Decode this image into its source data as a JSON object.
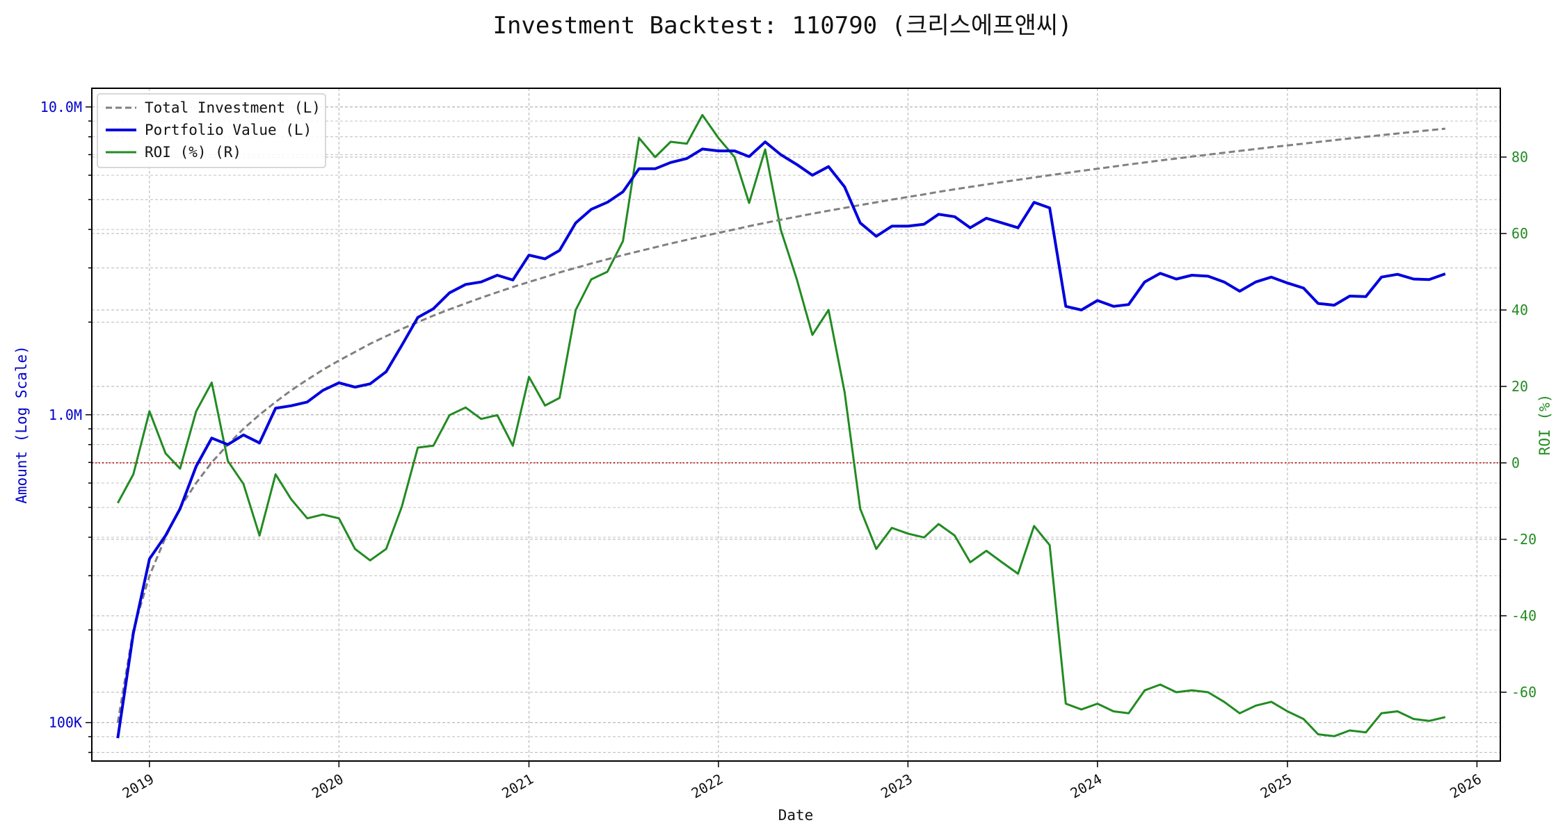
{
  "chart_data": {
    "type": "line",
    "title": "Investment Backtest: 110790 (크리스에프앤씨)",
    "xlabel": "Date",
    "ylabel_left": "Amount (Log Scale)",
    "ylabel_right": "ROI (%)",
    "left_axis": {
      "scale": "log",
      "ylim": [
        75000,
        11500000
      ],
      "ticks": [
        100000,
        1000000,
        10000000
      ],
      "tick_labels": [
        "100K",
        "1.0M",
        "10.0M"
      ],
      "color": "#0000cc"
    },
    "right_axis": {
      "scale": "linear",
      "ylim": [
        -78,
        98
      ],
      "ticks": [
        -60,
        -40,
        -20,
        0,
        20,
        40,
        60,
        80
      ],
      "tick_labels": [
        "-60",
        "-40",
        "-20",
        "0",
        "20",
        "40",
        "60",
        "80"
      ],
      "color": "#228b22"
    },
    "x_axis": {
      "start": "2018-09-12",
      "end": "2026-02-15",
      "tick_labels": [
        "2019",
        "2020",
        "2021",
        "2022",
        "2023",
        "2024",
        "2025",
        "2026"
      ]
    },
    "grid": true,
    "legend_position": "top-left",
    "zero_line": {
      "value": 0,
      "axis": "right",
      "color": "#cc0000"
    },
    "dates": [
      "2018-11-01",
      "2018-12-01",
      "2019-01-01",
      "2019-02-01",
      "2019-03-01",
      "2019-04-01",
      "2019-05-01",
      "2019-06-01",
      "2019-07-01",
      "2019-08-01",
      "2019-09-01",
      "2019-10-01",
      "2019-11-01",
      "2019-12-01",
      "2020-01-01",
      "2020-02-01",
      "2020-03-01",
      "2020-04-01",
      "2020-05-01",
      "2020-06-01",
      "2020-07-01",
      "2020-08-01",
      "2020-09-01",
      "2020-10-01",
      "2020-11-01",
      "2020-12-01",
      "2021-01-01",
      "2021-02-01",
      "2021-03-01",
      "2021-04-01",
      "2021-05-01",
      "2021-06-01",
      "2021-07-01",
      "2021-08-01",
      "2021-09-01",
      "2021-10-01",
      "2021-11-01",
      "2021-12-01",
      "2022-01-01",
      "2022-02-01",
      "2022-03-01",
      "2022-04-01",
      "2022-05-01",
      "2022-06-01",
      "2022-07-01",
      "2022-08-01",
      "2022-09-01",
      "2022-10-01",
      "2022-11-01",
      "2022-12-01",
      "2023-01-01",
      "2023-02-01",
      "2023-03-01",
      "2023-04-01",
      "2023-05-01",
      "2023-06-01",
      "2023-07-01",
      "2023-08-01",
      "2023-09-01",
      "2023-10-01",
      "2023-11-01",
      "2023-12-01",
      "2024-01-01",
      "2024-02-01",
      "2024-03-01",
      "2024-04-01",
      "2024-05-01",
      "2024-06-01",
      "2024-07-01",
      "2024-08-01",
      "2024-09-01",
      "2024-10-01",
      "2024-11-01",
      "2024-12-01",
      "2025-01-01",
      "2025-02-01",
      "2025-03-01",
      "2025-04-01",
      "2025-05-01",
      "2025-06-01",
      "2025-07-01",
      "2025-08-01",
      "2025-09-01",
      "2025-10-01",
      "2025-11-01"
    ],
    "series": [
      {
        "name": "Total Investment (L)",
        "axis": "left",
        "color": "#808080",
        "dash": true,
        "values": [
          100000,
          200000,
          300000,
          400000,
          500000,
          600000,
          700000,
          800000,
          900000,
          1000000,
          1100000,
          1200000,
          1300000,
          1400000,
          1500000,
          1600000,
          1700000,
          1800000,
          1900000,
          2000000,
          2100000,
          2200000,
          2300000,
          2400000,
          2500000,
          2600000,
          2700000,
          2800000,
          2900000,
          3000000,
          3100000,
          3200000,
          3300000,
          3400000,
          3500000,
          3600000,
          3700000,
          3800000,
          3900000,
          4000000,
          4100000,
          4200000,
          4300000,
          4400000,
          4500000,
          4600000,
          4700000,
          4800000,
          4900000,
          5000000,
          5100000,
          5200000,
          5300000,
          5400000,
          5500000,
          5600000,
          5700000,
          5800000,
          5900000,
          6000000,
          6100000,
          6200000,
          6300000,
          6400000,
          6500000,
          6600000,
          6700000,
          6800000,
          6900000,
          7000000,
          7100000,
          7200000,
          7300000,
          7400000,
          7500000,
          7600000,
          7700000,
          7800000,
          7900000,
          8000000,
          8100000,
          8200000,
          8300000,
          8400000,
          8500000
        ]
      },
      {
        "name": "Portfolio Value (L)",
        "axis": "left",
        "color": "#0000dd",
        "dash": false,
        "values": [
          89000,
          195000,
          340000,
          405000,
          495000,
          680000,
          840000,
          800000,
          860000,
          810000,
          1050000,
          1070000,
          1100000,
          1200000,
          1270000,
          1230000,
          1260000,
          1380000,
          1680000,
          2070000,
          2210000,
          2490000,
          2650000,
          2700000,
          2840000,
          2740000,
          3300000,
          3210000,
          3420000,
          4200000,
          4650000,
          4900000,
          5300000,
          6300000,
          6300000,
          6600000,
          6800000,
          7300000,
          7200000,
          7200000,
          6900000,
          7700000,
          7000000,
          6500000,
          6000000,
          6400000,
          5500000,
          4200000,
          3800000,
          4100000,
          4100000,
          4160000,
          4480000,
          4400000,
          4050000,
          4350000,
          4200000,
          4050000,
          4900000,
          4700000,
          2250000,
          2190000,
          2350000,
          2250000,
          2280000,
          2700000,
          2880000,
          2760000,
          2840000,
          2820000,
          2700000,
          2520000,
          2700000,
          2800000,
          2680000,
          2580000,
          2300000,
          2270000,
          2430000,
          2420000,
          2800000,
          2860000,
          2760000,
          2750000,
          2870000
        ]
      },
      {
        "name": "ROI (%)",
        "axis": "right",
        "color": "#228b22",
        "dash": false,
        "values": [
          -10.5,
          -3,
          13.5,
          2.5,
          -1.5,
          13.5,
          21,
          0.5,
          -5.5,
          -19,
          -3,
          -9.5,
          -14.5,
          -13.5,
          -14.5,
          -22.5,
          -25.5,
          -22.5,
          -11.5,
          4,
          4.5,
          12.5,
          14.5,
          11.5,
          12.5,
          4.5,
          22.5,
          15,
          17,
          40,
          48,
          50,
          58,
          85,
          80,
          84,
          83.5,
          91,
          85,
          80,
          68,
          82,
          61,
          48,
          33.5,
          40,
          18.5,
          -12,
          -22.5,
          -17,
          -18.5,
          -19.5,
          -16,
          -19,
          -26,
          -23,
          -26,
          -29,
          -16.5,
          -21.5,
          -63,
          -64.5,
          -63,
          -65,
          -65.5,
          -59.5,
          -58,
          -60,
          -59.5,
          -60,
          -62.5,
          -65.5,
          -63.5,
          -62.5,
          -65,
          -67,
          -71,
          -71.5,
          -70,
          -70.5,
          -65.5,
          -65,
          -67,
          -67.5,
          -66.5
        ]
      }
    ],
    "legend": [
      "Total Investment (L)",
      "Portfolio Value (L)",
      "ROI (%) (R)"
    ]
  }
}
